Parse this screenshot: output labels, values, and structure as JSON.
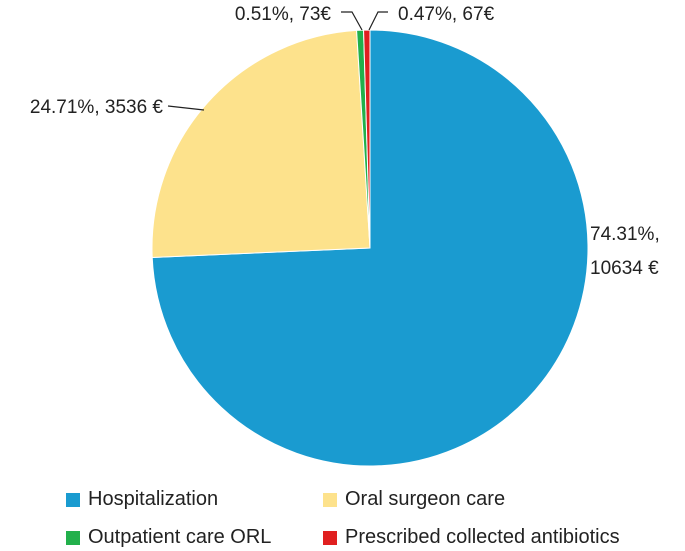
{
  "chart_data": {
    "type": "pie",
    "title": "",
    "slices": [
      {
        "name": "Hospitalization",
        "percent": 74.31,
        "value": 10634,
        "label": "74.31%, 10634 €",
        "label_lines": [
          "74.31%,",
          "10634 €"
        ],
        "color": "#1a9bd0"
      },
      {
        "name": "Oral surgeon care",
        "percent": 24.71,
        "value": 3536,
        "label": "24.71%, 3536 €",
        "label_lines": [
          "24.71%, 3536 €"
        ],
        "color": "#fde28c"
      },
      {
        "name": "Outpatient care ORL",
        "percent": 0.51,
        "value": 73,
        "label": "0.51%, 73€",
        "label_lines": [
          "0.51%, 73€"
        ],
        "color": "#22b04b"
      },
      {
        "name": "Prescribed collected antibiotics",
        "percent": 0.47,
        "value": 67,
        "label": "0.47%, 67€",
        "label_lines": [
          "0.47%, 67€"
        ],
        "color": "#e02020"
      }
    ],
    "legend_position": "bottom"
  }
}
